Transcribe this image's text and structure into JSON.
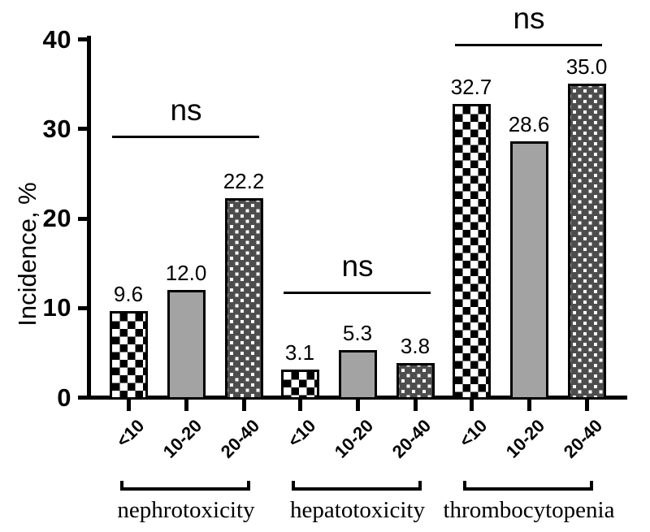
{
  "chart_data": {
    "type": "bar",
    "title": "",
    "xlabel": "",
    "ylabel": "Incidence, %",
    "ylim": [
      0,
      40
    ],
    "yticks": [
      "0",
      "10",
      "20",
      "30",
      "40"
    ],
    "grid": false,
    "legend": null,
    "categories": [
      "<10",
      "10-20",
      "20-40"
    ],
    "series_patterns": [
      "black-white-checkerboard",
      "solid-gray",
      "dark-gray-white-dots"
    ],
    "groups": [
      {
        "label": "nephrotoxicity",
        "values": [
          9.6,
          12.0,
          22.2
        ],
        "display_values": [
          "9.6",
          "12.0",
          "22.2"
        ],
        "annotation": {
          "text": "ns",
          "line_y": 29.2
        }
      },
      {
        "label": "hepatotoxicity",
        "values": [
          3.1,
          5.3,
          3.8
        ],
        "display_values": [
          "3.1",
          "5.3",
          "3.8"
        ],
        "annotation": {
          "text": "ns",
          "line_y": 11.8
        }
      },
      {
        "label": "thrombocytopenia",
        "values": [
          32.7,
          28.6,
          35.0
        ],
        "display_values": [
          "32.7",
          "28.6",
          "35.0"
        ],
        "annotation": {
          "text": "ns",
          "line_y": 39.5
        }
      }
    ],
    "colors": {
      "ink": "#000000",
      "background": "#ffffff",
      "gray_bar": "#a3a3a3",
      "dark_bar": "#4d4d4d"
    }
  }
}
